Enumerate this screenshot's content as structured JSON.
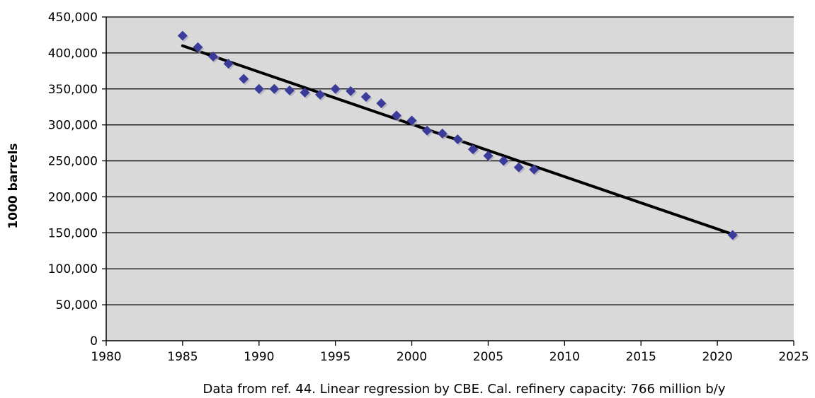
{
  "chart_data": {
    "type": "scatter",
    "title": "",
    "xlabel": "Data from ref. 44. Linear regression by CBE. Cal. refinery capacity: 766 million b/y",
    "ylabel": "1000 barrels",
    "xlim": [
      1980,
      2025
    ],
    "ylim": [
      0,
      450000
    ],
    "x_ticks": [
      1980,
      1985,
      1990,
      1995,
      2000,
      2005,
      2010,
      2015,
      2020,
      2025
    ],
    "y_ticks": [
      0,
      50000,
      100000,
      150000,
      200000,
      250000,
      300000,
      350000,
      400000,
      450000
    ],
    "x_tick_labels": [
      "1980",
      "1985",
      "1990",
      "1995",
      "2000",
      "2005",
      "2010",
      "2015",
      "2020",
      "2025"
    ],
    "y_tick_labels": [
      "0",
      "50,000",
      "100,000",
      "150,000",
      "200,000",
      "250,000",
      "300,000",
      "350,000",
      "400,000",
      "450,000"
    ],
    "grid": "horizontal",
    "series": [
      {
        "marker": "diamond",
        "color": "#3b3b9a",
        "x": [
          1985,
          1986,
          1987,
          1988,
          1989,
          1990,
          1991,
          1992,
          1993,
          1994,
          1995,
          1996,
          1997,
          1998,
          1999,
          2000,
          2001,
          2002,
          2003,
          2004,
          2005,
          2006,
          2007,
          2008,
          2021
        ],
        "y": [
          424000,
          408000,
          395000,
          385000,
          364000,
          350000,
          350000,
          348000,
          345000,
          342000,
          350000,
          347000,
          339000,
          330000,
          313000,
          306000,
          292000,
          288000,
          280000,
          266000,
          257000,
          250000,
          241000,
          238000,
          147000
        ]
      }
    ],
    "trendline": {
      "type": "linear",
      "color": "#000000",
      "x": [
        1985,
        2021
      ],
      "y": [
        410000,
        148000
      ]
    },
    "plot_background": "#d9d9d9"
  }
}
